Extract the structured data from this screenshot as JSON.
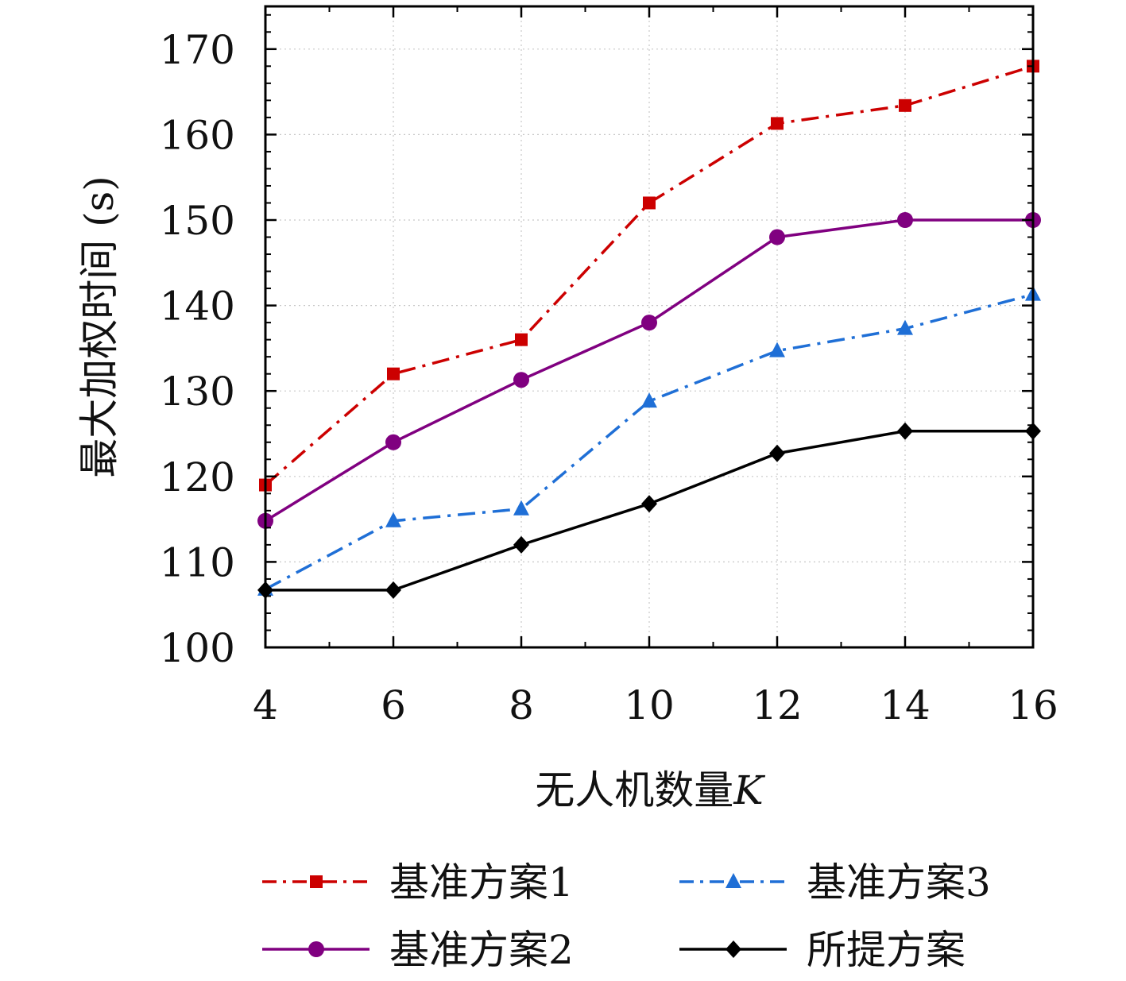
{
  "chart_data": {
    "type": "line",
    "title": "",
    "xlabel": "无人机数量K",
    "xlabel_text": "无人机数量",
    "xlabel_var": "K",
    "ylabel": "最大加权时间 (s)",
    "x": [
      4,
      6,
      8,
      10,
      12,
      14,
      16
    ],
    "xlim": [
      4,
      16
    ],
    "ylim": [
      100,
      175
    ],
    "xticks": [
      4,
      6,
      8,
      10,
      12,
      14,
      16
    ],
    "yticks": [
      100,
      110,
      120,
      130,
      140,
      150,
      160,
      170
    ],
    "grid": true,
    "legend_position": "bottom",
    "series": [
      {
        "name": "基准方案1",
        "values": [
          119,
          132,
          136,
          152,
          161.3,
          163.4,
          168
        ],
        "color": "#cc0000",
        "marker": "square",
        "dash": "dashdot"
      },
      {
        "name": "基准方案2",
        "values": [
          114.8,
          124,
          131.3,
          138,
          148,
          150,
          150
        ],
        "color": "#800080",
        "marker": "circle",
        "dash": "solid"
      },
      {
        "name": "基准方案3",
        "values": [
          106.8,
          114.8,
          116.2,
          128.8,
          134.7,
          137.3,
          141.3
        ],
        "color": "#1f6fd6",
        "marker": "triangle",
        "dash": "dashdot"
      },
      {
        "name": "所提方案",
        "values": [
          106.7,
          106.7,
          112,
          116.8,
          122.7,
          125.3,
          125.3
        ],
        "color": "#000000",
        "marker": "diamond",
        "dash": "solid"
      }
    ]
  }
}
